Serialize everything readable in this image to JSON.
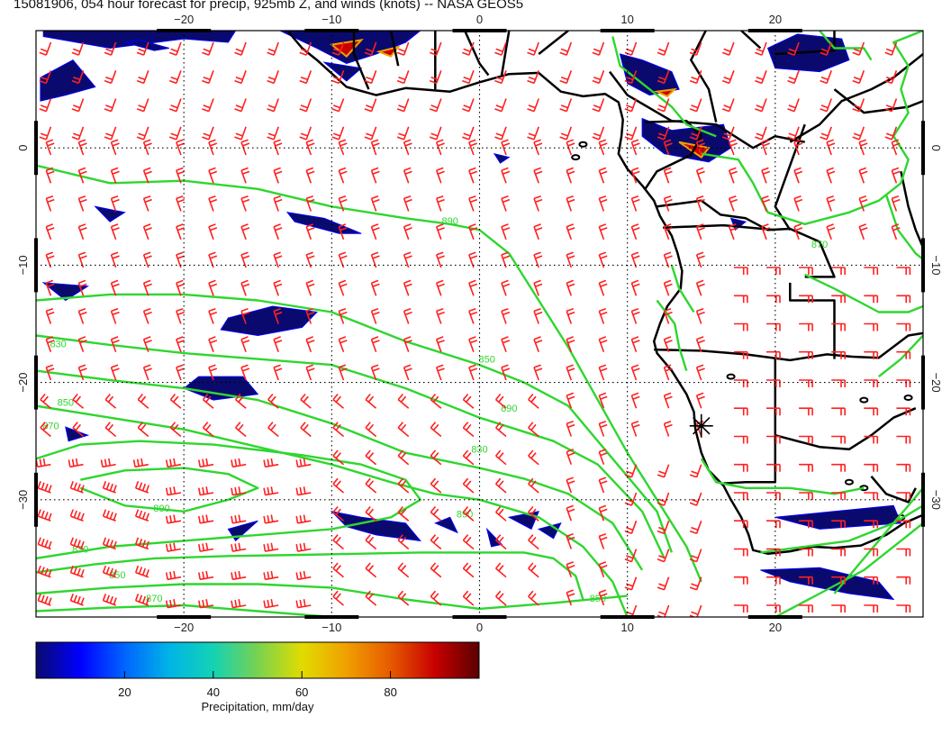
{
  "title": "15081906, 054 hour forecast for precip, 925mb Z, and winds (knots) -- NASA GEOS5",
  "axes": {
    "lon_ticks": [
      -20,
      -10,
      0,
      10,
      20
    ],
    "lat_ticks": [
      0,
      -10,
      -20,
      -30
    ],
    "lon_range": [
      -30,
      30
    ],
    "lat_range": [
      -40,
      10
    ],
    "grid": true
  },
  "colorbar": {
    "label": "Precipitation, mm/day",
    "ticks": [
      20,
      40,
      60,
      80
    ],
    "range": [
      0,
      100
    ],
    "colors": [
      "#0a0a6e",
      "#0000ff",
      "#0064ff",
      "#00b4e6",
      "#14d2b4",
      "#78d250",
      "#e1dc00",
      "#f0a000",
      "#e65a00",
      "#c80000",
      "#5a0000"
    ]
  },
  "contours": {
    "color": "#2fd62f",
    "labels": [
      "830",
      "850",
      "870",
      "890",
      "830",
      "850",
      "870",
      "890",
      "850",
      "890",
      "830",
      "850",
      "870",
      "890"
    ]
  },
  "winds": {
    "color": "#ff2020"
  },
  "coast_color": "#000000",
  "marker": {
    "symbol": "*"
  }
}
